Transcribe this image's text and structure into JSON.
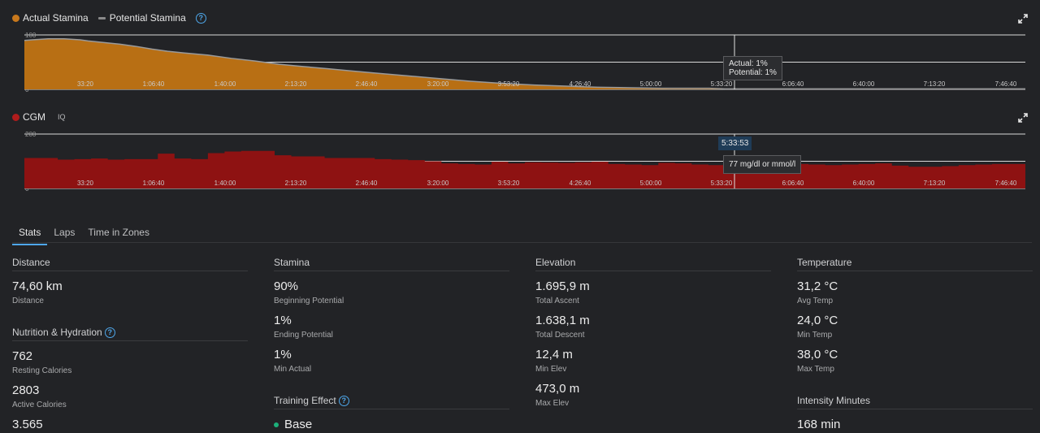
{
  "stamina_chart": {
    "legend": [
      {
        "label": "Actual Stamina",
        "color": "#c8781c"
      },
      {
        "label": "Potential Stamina",
        "color": "#8a8a8a"
      }
    ],
    "tooltip": {
      "actual": "Actual: 1%",
      "potential": "Potential: 1%"
    }
  },
  "cgm_chart": {
    "legend": {
      "label": "CGM",
      "color": "#b01c1c",
      "iq": "IQ"
    },
    "time_badge": "5:33:53",
    "tooltip": "77 mg/dl or mmol/l"
  },
  "chart_data": [
    {
      "type": "area",
      "ylim": [
        0,
        100
      ],
      "yticks": [
        "100",
        "50",
        "0"
      ],
      "xticks": [
        "33:20",
        "1:06:40",
        "1:40:00",
        "2:13:20",
        "2:46:40",
        "3:20:00",
        "3:53:20",
        "4:26:40",
        "5:00:00",
        "5:33:20",
        "6:06:40",
        "6:40:00",
        "7:13:20",
        "7:46:40"
      ],
      "x": [
        0,
        10,
        20,
        30,
        40,
        50,
        60,
        70,
        80,
        100,
        120,
        140,
        160,
        180,
        200,
        230,
        260,
        290,
        320,
        350,
        380,
        410,
        440,
        480,
        520,
        560,
        600,
        640,
        680,
        720,
        760,
        800,
        810,
        830,
        860,
        880
      ],
      "series": [
        {
          "name": "Actual Stamina",
          "values": [
            90,
            91,
            92,
            93,
            93,
            93,
            92,
            91,
            89,
            86,
            83,
            79,
            74,
            70,
            67,
            63,
            57,
            52,
            46,
            42,
            38,
            34,
            30,
            25,
            20,
            15,
            11,
            8,
            6,
            4,
            3,
            2,
            1,
            1,
            1,
            1
          ]
        },
        {
          "name": "Potential Stamina",
          "values": [
            90,
            91,
            92,
            93,
            93,
            93,
            92,
            91,
            89,
            86,
            83,
            79,
            74,
            70,
            67,
            63,
            57,
            52,
            46,
            42,
            38,
            34,
            30,
            25,
            20,
            15,
            11,
            8,
            6,
            4,
            3,
            2,
            2,
            2,
            2,
            1
          ]
        }
      ]
    },
    {
      "type": "area",
      "ylim": [
        0,
        200
      ],
      "yticks": [
        "200",
        "100",
        "0"
      ],
      "xticks": [
        "33:20",
        "1:06:40",
        "1:40:00",
        "2:13:20",
        "2:46:40",
        "3:20:00",
        "3:53:20",
        "4:26:40",
        "5:00:00",
        "5:33:20",
        "6:06:40",
        "6:40:00",
        "7:13:20",
        "7:46:40"
      ],
      "x": [
        0,
        20,
        40,
        60,
        80,
        100,
        120,
        140,
        160,
        180,
        200,
        220,
        240,
        260,
        280,
        300,
        320,
        340,
        360,
        380,
        400,
        420,
        440,
        460,
        480,
        500,
        520,
        540,
        560,
        580,
        600,
        620,
        640,
        660,
        680,
        700,
        720,
        740,
        760,
        780,
        800,
        820,
        840,
        860,
        880,
        900,
        920,
        940,
        960,
        980,
        1000,
        1020,
        1040,
        1060,
        1080,
        1100,
        1120,
        1140,
        1160,
        1180,
        1200
      ],
      "series": [
        {
          "name": "CGM",
          "values": [
            112,
            112,
            106,
            108,
            110,
            106,
            108,
            108,
            128,
            110,
            108,
            130,
            136,
            138,
            138,
            122,
            118,
            118,
            112,
            112,
            112,
            108,
            106,
            104,
            100,
            92,
            90,
            88,
            98,
            92,
            96,
            95,
            94,
            96,
            98,
            90,
            88,
            86,
            94,
            92,
            88,
            86,
            86,
            88,
            92,
            94,
            90,
            88,
            86,
            88,
            90,
            92,
            84,
            80,
            80,
            82,
            86,
            88,
            90,
            90,
            92
          ]
        }
      ]
    }
  ],
  "tabs": [
    "Stats",
    "Laps",
    "Time in Zones"
  ],
  "stats": {
    "distance": {
      "title": "Distance",
      "items": [
        {
          "value": "74,60 km",
          "label": "Distance"
        }
      ]
    },
    "nutrition": {
      "title": "Nutrition & Hydration",
      "items": [
        {
          "value": "762",
          "label": "Resting Calories"
        },
        {
          "value": "2803",
          "label": "Active Calories"
        },
        {
          "value": "3.565",
          "label": ""
        }
      ]
    },
    "stamina": {
      "title": "Stamina",
      "items": [
        {
          "value": "90%",
          "label": "Beginning Potential"
        },
        {
          "value": "1%",
          "label": "Ending Potential"
        },
        {
          "value": "1%",
          "label": "Min Actual"
        }
      ]
    },
    "training_effect": {
      "title": "Training Effect",
      "value": "Base"
    },
    "elevation": {
      "title": "Elevation",
      "items": [
        {
          "value": "1.695,9 m",
          "label": "Total Ascent"
        },
        {
          "value": "1.638,1 m",
          "label": "Total Descent"
        },
        {
          "value": "12,4 m",
          "label": "Min Elev"
        },
        {
          "value": "473,0 m",
          "label": "Max Elev"
        }
      ]
    },
    "temperature": {
      "title": "Temperature",
      "items": [
        {
          "value": "31,2 °C",
          "label": "Avg Temp"
        },
        {
          "value": "24,0 °C",
          "label": "Min Temp"
        },
        {
          "value": "38,0 °C",
          "label": "Max Temp"
        }
      ]
    },
    "intensity": {
      "title": "Intensity Minutes",
      "value": "168 min"
    }
  }
}
